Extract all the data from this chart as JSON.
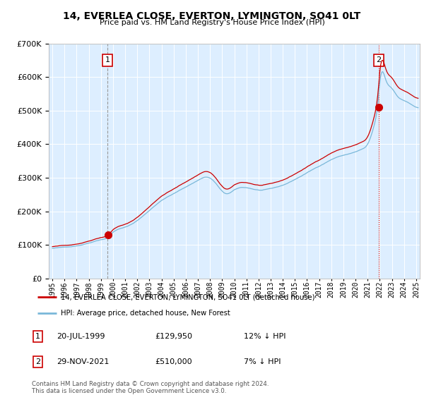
{
  "title": "14, EVERLEA CLOSE, EVERTON, LYMINGTON, SO41 0LT",
  "subtitle": "Price paid vs. HM Land Registry's House Price Index (HPI)",
  "legend_line1": "14, EVERLEA CLOSE, EVERTON, LYMINGTON, SO41 0LT (detached house)",
  "legend_line2": "HPI: Average price, detached house, New Forest",
  "transaction1_date": "20-JUL-1999",
  "transaction1_price": "£129,950",
  "transaction1_hpi": "12% ↓ HPI",
  "transaction2_date": "29-NOV-2021",
  "transaction2_price": "£510,000",
  "transaction2_hpi": "7% ↓ HPI",
  "footnote": "Contains HM Land Registry data © Crown copyright and database right 2024.\nThis data is licensed under the Open Government Licence v3.0.",
  "hpi_color": "#7ab8d9",
  "price_color": "#cc0000",
  "vline1_color": "#888888",
  "vline2_color": "#cc0000",
  "background_color": "#ddeeff",
  "plot_bg": "#ddeeff",
  "grid_color": "#ffffff",
  "ylim": [
    0,
    700000
  ],
  "yticks": [
    0,
    100000,
    200000,
    300000,
    400000,
    500000,
    600000,
    700000
  ],
  "transaction1_x": 1999.55,
  "transaction2_x": 2021.92,
  "purchase1_price": 129950,
  "purchase2_price": 510000,
  "hpi_index_at_purchase1": 112000,
  "hpi_index_at_purchase2": 547000
}
